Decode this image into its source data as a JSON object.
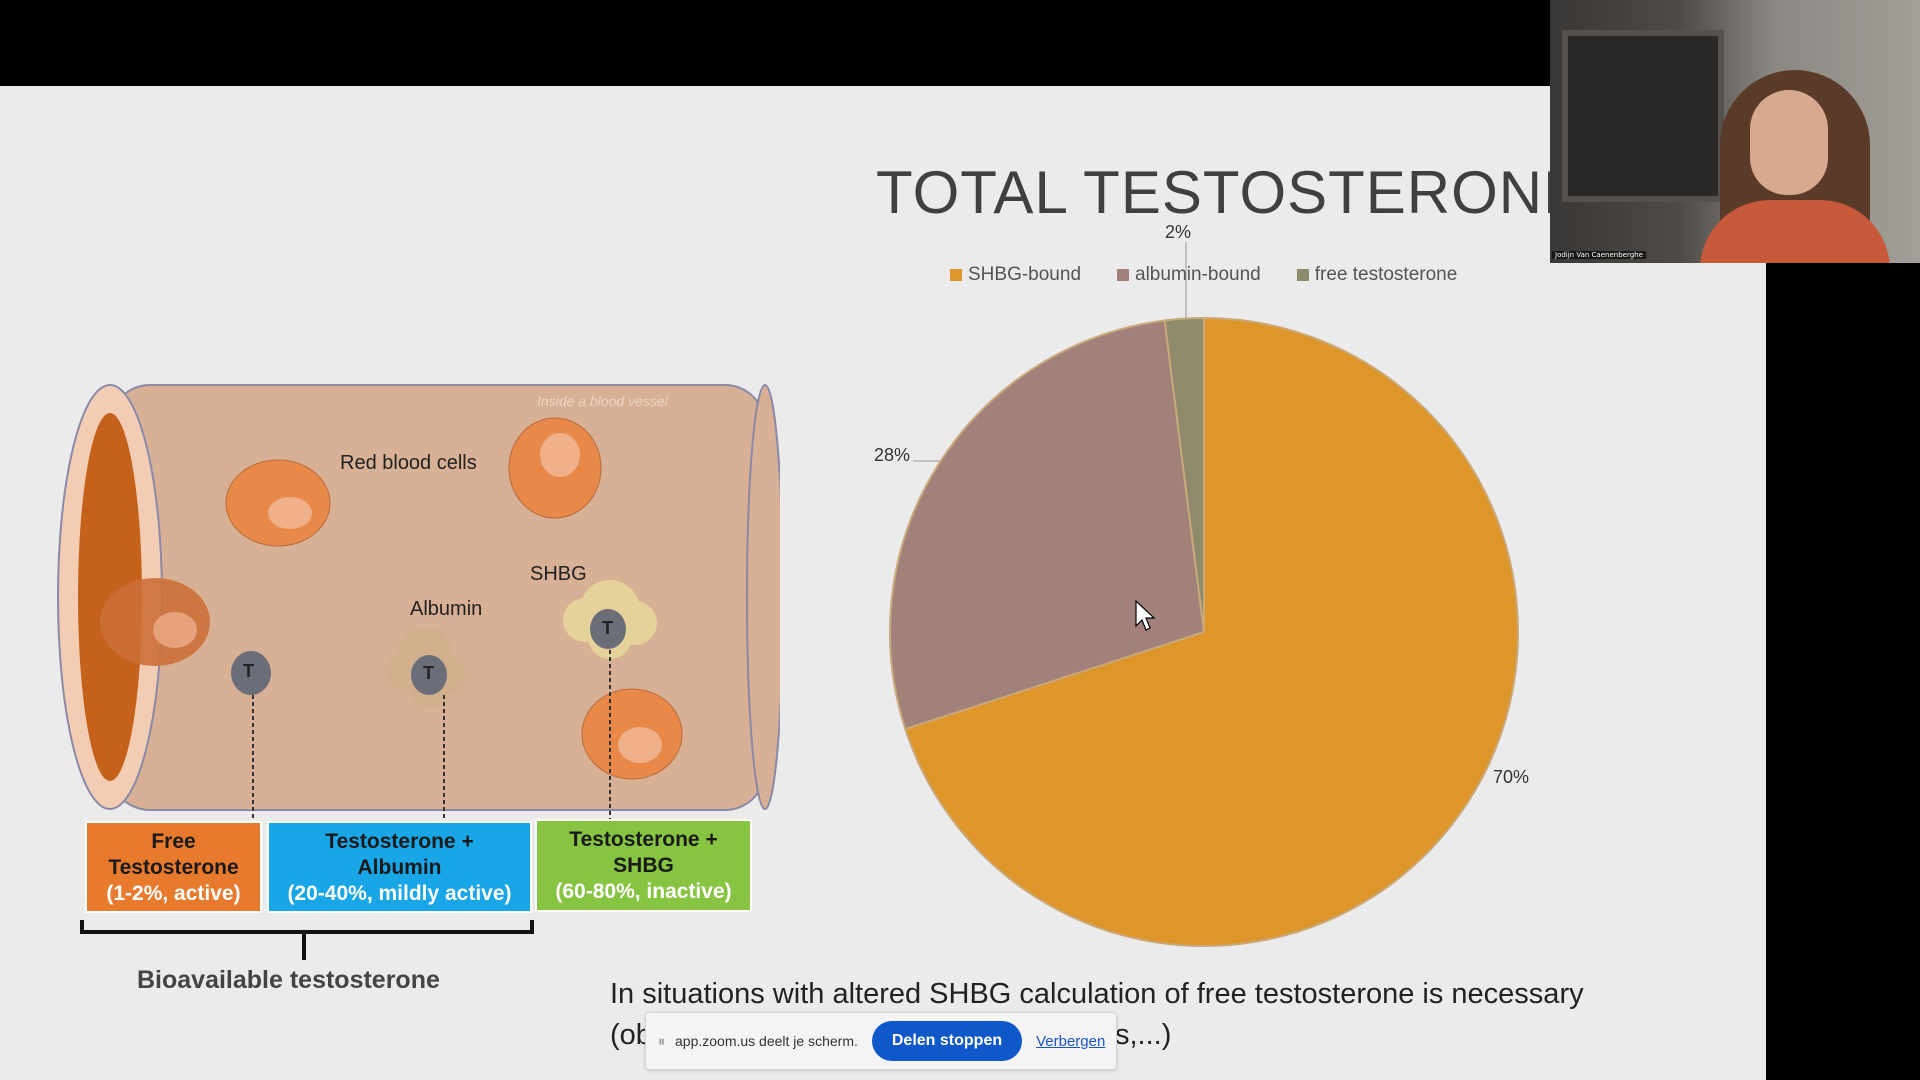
{
  "slide": {
    "title": "TOTAL TESTOSTERONE",
    "bottom_line1": "In situations with altered SHBG calculation of free testosterone is necessary",
    "bottom_line2_start": "(ob",
    "bottom_line2_end": "s,...)"
  },
  "diagram": {
    "watermark": "Inside a blood vessel",
    "red_blood_cells": "Red blood cells",
    "albumin": "Albumin",
    "shbg": "SHBG",
    "t_marker": "T",
    "boxes": [
      {
        "line1": "Free",
        "line2": "Testosterone",
        "line3": "(1-2%, active)",
        "color": "#e87a2e"
      },
      {
        "line1": "Testosterone +",
        "line2": "Albumin",
        "line3": "(20-40%, mildly active)",
        "color": "#19a6e6"
      },
      {
        "line1": "Testosterone +",
        "line2": "SHBG",
        "line3": "(60-80%, inactive)",
        "color": "#86c442"
      }
    ],
    "bioavailable": "Bioavailable testosterone"
  },
  "chart_data": {
    "type": "pie",
    "title": "TOTAL TESTOSTERONE",
    "legend_position": "top",
    "slices": [
      {
        "name": "SHBG-bound",
        "value": 70,
        "label": "70%",
        "color": "#de962a"
      },
      {
        "name": "albumin-bound",
        "value": 28,
        "label": "28%",
        "color": "#a2817b"
      },
      {
        "name": "free testosterone",
        "value": 2,
        "label": "2%",
        "color": "#8e8a6c"
      }
    ]
  },
  "zoom_share_bar": {
    "message": "app.zoom.us deelt je scherm.",
    "stop_label": "Delen stoppen",
    "hide_label": "Verbergen"
  },
  "webcam": {
    "participant_name": "Jodijn Van Caenenberghe"
  }
}
